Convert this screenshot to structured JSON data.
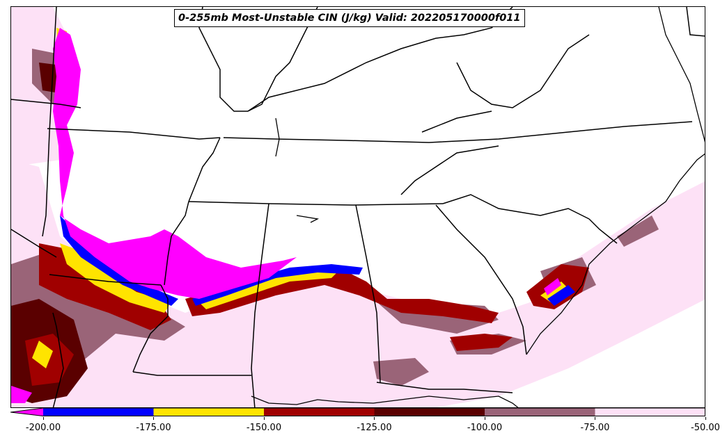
{
  "title": "0-255mb Most-Unstable CIN (J/kg) Valid: 202205170000f011",
  "colorbar": {
    "bins": [
      {
        "from": -225,
        "to": -200,
        "color": "#ff00ff"
      },
      {
        "from": -200,
        "to": -175,
        "color": "#0000ff"
      },
      {
        "from": -175,
        "to": -150,
        "color": "#ffe400"
      },
      {
        "from": -150,
        "to": -125,
        "color": "#a00000"
      },
      {
        "from": -125,
        "to": -100,
        "color": "#5a0000"
      },
      {
        "from": -100,
        "to": -75,
        "color": "#9a6478"
      },
      {
        "from": -75,
        "to": -50,
        "color": "#fde1f6"
      }
    ],
    "tick_labels": [
      "-200.00",
      "-175.00",
      "-150.00",
      "-125.00",
      "-100.00",
      "-75.00",
      "-50.00"
    ]
  }
}
